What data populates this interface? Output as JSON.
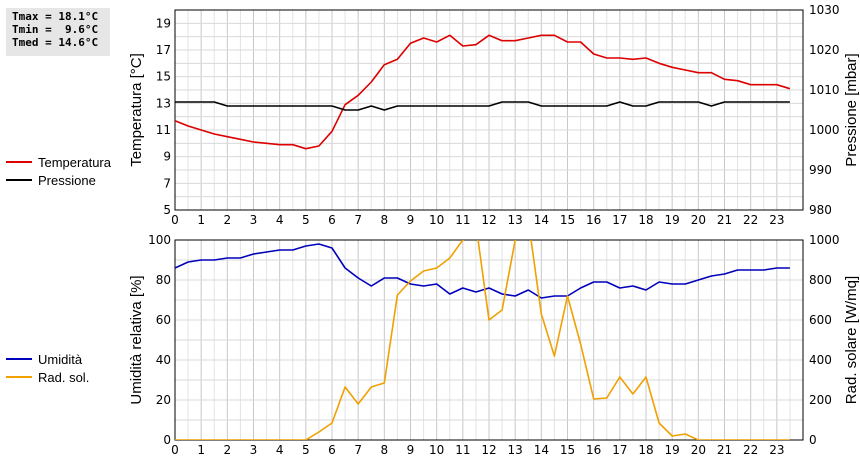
{
  "stats": {
    "lines": [
      "Tmax = 18.1°C",
      "Tmin =  9.6°C",
      "Tmed = 14.6°C"
    ]
  },
  "legend_top": [
    {
      "label": "Temperatura",
      "color": "#dd0000"
    },
    {
      "label": "Pressione",
      "color": "#000000"
    }
  ],
  "legend_bottom": [
    {
      "label": "Umidità",
      "color": "#0000bb"
    },
    {
      "label": "Rad. sol.",
      "color": "#f0a000"
    }
  ],
  "chart_data": [
    {
      "type": "line",
      "ylabel": "Temperatura [°C]",
      "y2label": "Pressione [mbar]",
      "xlim": [
        0,
        24
      ],
      "ylim": [
        5,
        20
      ],
      "y2lim": [
        980,
        1030
      ],
      "x_ticks": [
        0,
        1,
        2,
        3,
        4,
        5,
        6,
        7,
        8,
        9,
        10,
        11,
        12,
        13,
        14,
        15,
        16,
        17,
        18,
        19,
        20,
        21,
        22,
        23
      ],
      "y_ticks": [
        5,
        7,
        9,
        11,
        13,
        15,
        17,
        19
      ],
      "y2_ticks": [
        980,
        990,
        1000,
        1010,
        1020,
        1030
      ],
      "grid": true,
      "legend": "left",
      "series": [
        {
          "name": "Temperatura",
          "axis": "left",
          "color": "#dd0000",
          "x": [
            0,
            0.5,
            1,
            1.5,
            2,
            2.5,
            3,
            3.5,
            4,
            4.5,
            5,
            5.5,
            6,
            6.5,
            7,
            7.5,
            8,
            8.5,
            9,
            9.5,
            10,
            10.5,
            11,
            11.5,
            12,
            12.5,
            13,
            13.5,
            14,
            14.5,
            15,
            15.5,
            16,
            16.5,
            17,
            17.5,
            18,
            18.5,
            19,
            19.5,
            20,
            20.5,
            21,
            21.5,
            22,
            22.5,
            23,
            23.5
          ],
          "y": [
            11.7,
            11.3,
            11.0,
            10.7,
            10.5,
            10.3,
            10.1,
            10.0,
            9.9,
            9.9,
            9.6,
            9.8,
            10.9,
            12.9,
            13.6,
            14.6,
            15.9,
            16.3,
            17.5,
            17.9,
            17.6,
            18.1,
            17.3,
            17.4,
            18.1,
            17.7,
            17.7,
            17.9,
            18.1,
            18.1,
            17.6,
            17.6,
            16.7,
            16.4,
            16.4,
            16.3,
            16.4,
            16.0,
            15.7,
            15.5,
            15.3,
            15.3,
            14.8,
            14.7,
            14.4,
            14.4,
            14.4,
            14.1
          ]
        },
        {
          "name": "Pressione",
          "axis": "right",
          "color": "#000000",
          "x": [
            0,
            0.5,
            1,
            1.5,
            2,
            2.5,
            3,
            3.5,
            4,
            4.5,
            5,
            5.5,
            6,
            6.5,
            7,
            7.5,
            8,
            8.5,
            9,
            9.5,
            10,
            10.5,
            11,
            11.5,
            12,
            12.5,
            13,
            13.5,
            14,
            14.5,
            15,
            15.5,
            16,
            16.5,
            17,
            17.5,
            18,
            18.5,
            19,
            19.5,
            20,
            20.5,
            21,
            21.5,
            22,
            22.5,
            23,
            23.5
          ],
          "y": [
            1007,
            1007,
            1007,
            1007,
            1006,
            1006,
            1006,
            1006,
            1006,
            1006,
            1006,
            1006,
            1006,
            1005,
            1005,
            1006,
            1005,
            1006,
            1006,
            1006,
            1006,
            1006,
            1006,
            1006,
            1006,
            1007,
            1007,
            1007,
            1006,
            1006,
            1006,
            1006,
            1006,
            1006,
            1007,
            1006,
            1006,
            1007,
            1007,
            1007,
            1007,
            1006,
            1007,
            1007,
            1007,
            1007,
            1007,
            1007
          ]
        }
      ]
    },
    {
      "type": "line",
      "ylabel": "Umidità relativa [%]",
      "y2label": "Rad. solare [W/mq]",
      "xlim": [
        0,
        24
      ],
      "ylim": [
        0,
        100
      ],
      "y2lim": [
        0,
        1000
      ],
      "x_ticks": [
        0,
        1,
        2,
        3,
        4,
        5,
        6,
        7,
        8,
        9,
        10,
        11,
        12,
        13,
        14,
        15,
        16,
        17,
        18,
        19,
        20,
        21,
        22,
        23
      ],
      "y_ticks": [
        0,
        20,
        40,
        60,
        80,
        100
      ],
      "y2_ticks": [
        0,
        200,
        400,
        600,
        800,
        1000
      ],
      "grid": true,
      "legend": "left",
      "series": [
        {
          "name": "Umidità",
          "axis": "left",
          "color": "#0000bb",
          "x": [
            0,
            0.5,
            1,
            1.5,
            2,
            2.5,
            3,
            3.5,
            4,
            4.5,
            5,
            5.5,
            6,
            6.5,
            7,
            7.5,
            8,
            8.5,
            9,
            9.5,
            10,
            10.5,
            11,
            11.5,
            12,
            12.5,
            13,
            13.5,
            14,
            14.5,
            15,
            15.5,
            16,
            16.5,
            17,
            17.5,
            18,
            18.5,
            19,
            19.5,
            20,
            20.5,
            21,
            21.5,
            22,
            22.5,
            23,
            23.5
          ],
          "y": [
            86,
            89,
            90,
            90,
            91,
            91,
            93,
            94,
            95,
            95,
            97,
            98,
            96,
            86,
            81,
            77,
            81,
            81,
            78,
            77,
            78,
            73,
            76,
            74,
            76,
            73,
            72,
            75,
            71,
            72,
            72,
            76,
            79,
            79,
            76,
            77,
            75,
            79,
            78,
            78,
            80,
            82,
            83,
            85,
            85,
            85,
            86,
            86
          ]
        },
        {
          "name": "Rad. sol.",
          "axis": "right",
          "color": "#f0a000",
          "x": [
            0,
            0.5,
            1,
            1.5,
            2,
            2.5,
            3,
            3.5,
            4,
            4.5,
            5,
            5.5,
            6,
            6.5,
            7,
            7.5,
            8,
            8.5,
            9,
            9.5,
            10,
            10.5,
            11,
            11.5,
            12,
            12.5,
            13,
            13.5,
            14,
            14.5,
            15,
            15.5,
            16,
            16.5,
            17,
            17.5,
            18,
            18.5,
            19,
            19.5,
            20,
            20.5,
            21,
            21.5,
            22,
            22.5,
            23,
            23.5
          ],
          "y": [
            0,
            0,
            0,
            0,
            0,
            0,
            0,
            0,
            0,
            0,
            0,
            40,
            85,
            265,
            180,
            265,
            285,
            725,
            795,
            845,
            860,
            910,
            1000,
            1080,
            600,
            650,
            1000,
            1100,
            630,
            420,
            720,
            480,
            205,
            210,
            315,
            230,
            315,
            85,
            20,
            30,
            0,
            0,
            0,
            0,
            0,
            0,
            0,
            0
          ]
        }
      ]
    }
  ]
}
